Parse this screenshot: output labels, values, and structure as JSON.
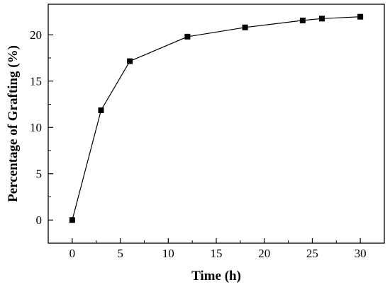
{
  "chart_data": {
    "type": "line",
    "title": "",
    "xlabel": "Time (h)",
    "ylabel": "Percentage of Grafting (%)",
    "xlim": [
      -2.5,
      32.5
    ],
    "ylim": [
      -2.5,
      23.3
    ],
    "xticks": [
      0,
      5,
      10,
      15,
      20,
      25,
      30
    ],
    "yticks": [
      0,
      5,
      10,
      15,
      20
    ],
    "grid": false,
    "legend": "none",
    "series": [
      {
        "x": [
          0,
          3,
          6,
          12,
          18,
          24,
          26,
          30
        ],
        "y": [
          0,
          11.85,
          17.15,
          19.8,
          20.8,
          21.55,
          21.75,
          21.95
        ]
      }
    ]
  }
}
